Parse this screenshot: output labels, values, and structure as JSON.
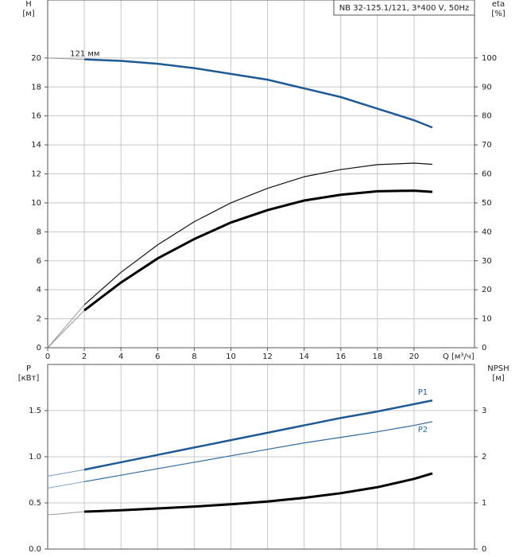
{
  "chart_data": [
    {
      "type": "line",
      "title": "NB 32-125.1/121, 3*400 V, 50Hz",
      "y_label": "H",
      "y_unit": "[м]",
      "y2_label": "eta",
      "y2_unit": "[%]",
      "x_label": "Q [м³/ч]",
      "annotation": "121 мм",
      "xlim": [
        0,
        23.3
      ],
      "xticks": [
        0,
        2,
        4,
        6,
        8,
        10,
        12,
        14,
        16,
        18,
        20
      ],
      "ylim": [
        0,
        24
      ],
      "yticks": [
        0,
        2,
        4,
        6,
        8,
        10,
        12,
        14,
        16,
        18,
        20
      ],
      "y2lim": [
        0,
        120
      ],
      "y2ticks": [
        0,
        10,
        20,
        30,
        40,
        50,
        60,
        70,
        80,
        90,
        100
      ],
      "grid": true,
      "series": [
        {
          "color": "#999999",
          "width": 1,
          "x": [
            0,
            2
          ],
          "values": [
            20,
            19.9
          ]
        },
        {
          "color": "#1f5a96",
          "width": 2.5,
          "x": [
            2,
            4,
            6,
            8,
            10,
            12,
            14,
            16,
            18,
            20,
            21
          ],
          "values": [
            19.9,
            19.8,
            19.6,
            19.3,
            18.9,
            18.5,
            17.9,
            17.3,
            16.5,
            15.7,
            15.2
          ]
        },
        {
          "color": "#999999",
          "width": 1,
          "axis": "y2",
          "x": [
            0,
            2
          ],
          "values": [
            0,
            14.8
          ]
        },
        {
          "color": "#999999",
          "width": 1,
          "axis": "y2",
          "x": [
            0,
            2
          ],
          "values": [
            0,
            12.9
          ]
        },
        {
          "color": "#111111",
          "width": 1.2,
          "axis": "y2",
          "x": [
            2,
            4,
            6,
            8,
            10,
            12,
            14,
            16,
            18,
            20,
            21
          ],
          "values": [
            14.8,
            26,
            35.5,
            43.5,
            50,
            55,
            59,
            61.5,
            63.2,
            63.7,
            63.3
          ]
        },
        {
          "color": "#000000",
          "width": 3,
          "axis": "y2",
          "x": [
            2,
            4,
            6,
            8,
            10,
            12,
            14,
            16,
            18,
            20,
            21
          ],
          "values": [
            12.9,
            22.5,
            30.8,
            37.5,
            43.2,
            47.5,
            50.8,
            52.8,
            54,
            54.2,
            53.8
          ]
        }
      ]
    },
    {
      "type": "line",
      "y_label": "P",
      "y_unit": "[кВт]",
      "y2_label": "NPSH",
      "y2_unit": "[м]",
      "xlim": [
        0,
        23.3
      ],
      "ylim": [
        0,
        2
      ],
      "yticks": [
        {
          "value": 0,
          "label": "0.0"
        },
        0.5,
        {
          "value": 1,
          "label": "1.0"
        },
        1.5
      ],
      "y2lim": [
        0,
        4
      ],
      "y2ticks": [
        0,
        1,
        2,
        3
      ],
      "grid": true,
      "series": [
        {
          "color": "#7a9cc0",
          "width": 1,
          "x": [
            0,
            2
          ],
          "values": [
            0.79,
            0.86
          ]
        },
        {
          "name": "P1",
          "color": "#1f5a96",
          "width": 2.5,
          "x": [
            2,
            4,
            6,
            8,
            10,
            12,
            14,
            16,
            18,
            20,
            21
          ],
          "values": [
            0.86,
            0.94,
            1.02,
            1.1,
            1.18,
            1.26,
            1.34,
            1.42,
            1.49,
            1.57,
            1.61
          ]
        },
        {
          "color": "#7a9cc0",
          "width": 1,
          "x": [
            0,
            2
          ],
          "values": [
            0.66,
            0.73
          ]
        },
        {
          "name": "P2",
          "color": "#2f6aa0",
          "width": 1.2,
          "x": [
            2,
            4,
            6,
            8,
            10,
            12,
            14,
            16,
            18,
            20,
            21
          ],
          "values": [
            0.73,
            0.8,
            0.87,
            0.94,
            1.01,
            1.08,
            1.15,
            1.21,
            1.27,
            1.34,
            1.38
          ]
        },
        {
          "color": "#999999",
          "width": 1,
          "axis": "y2",
          "x": [
            0,
            2
          ],
          "values": [
            0.74,
            0.81
          ]
        },
        {
          "color": "#000000",
          "width": 3,
          "axis": "y2",
          "x": [
            2,
            4,
            6,
            8,
            10,
            12,
            14,
            16,
            18,
            20,
            21
          ],
          "values": [
            0.81,
            0.84,
            0.88,
            0.92,
            0.97,
            1.03,
            1.11,
            1.21,
            1.34,
            1.52,
            1.64
          ]
        }
      ]
    }
  ]
}
